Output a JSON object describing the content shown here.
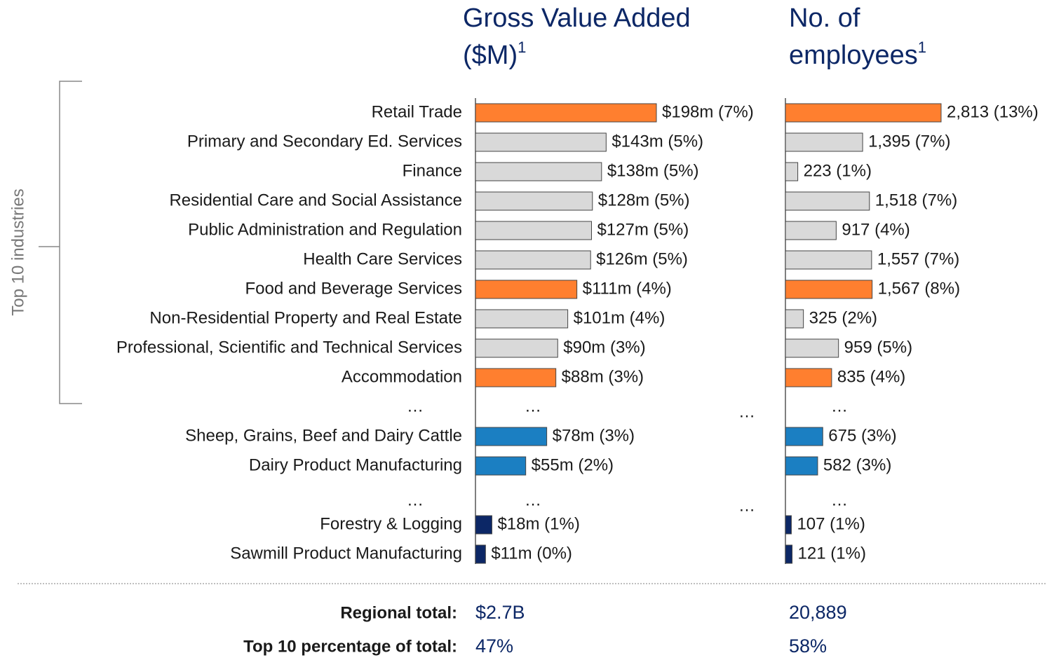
{
  "chart_data": {
    "type": "bar",
    "orientation": "horizontal",
    "bracket_label": "Top 10 industries",
    "categories": [
      "Retail Trade",
      "Primary and Secondary Ed. Services",
      "Finance",
      "Residential Care and Social Assistance",
      "Public Administration and Regulation",
      "Health Care Services",
      "Food and Beverage Services",
      "Non-Residential Property and Real Estate",
      "Professional, Scientific and Technical Services",
      "Accommodation",
      "…",
      "Sheep, Grains, Beef and Dairy Cattle",
      "Dairy Product Manufacturing",
      "…",
      "Forestry & Logging",
      "Sawmill Product Manufacturing"
    ],
    "colors": [
      "#ff7f2f",
      "#d9d9d9",
      "#d9d9d9",
      "#d9d9d9",
      "#d9d9d9",
      "#d9d9d9",
      "#ff7f2f",
      "#d9d9d9",
      "#d9d9d9",
      "#ff7f2f",
      null,
      "#1b7fc2",
      "#1b7fc2",
      null,
      "#0c2766",
      "#0c2766"
    ],
    "series": [
      {
        "name": "Gross Value Added ($M)",
        "footnote": "1",
        "values": [
          198,
          143,
          138,
          128,
          127,
          126,
          111,
          101,
          90,
          88,
          null,
          78,
          55,
          null,
          18,
          11
        ],
        "value_labels": [
          "$198m (7%)",
          "$143m (5%)",
          "$138m (5%)",
          "$128m (5%)",
          "$127m (5%)",
          "$126m (5%)",
          "$111m (4%)",
          "$101m (4%)",
          "$90m (3%)",
          "$88m (3%)",
          null,
          "$78m (3%)",
          "$55m (2%)",
          null,
          "$18m (1%)",
          "$11m (0%)"
        ]
      },
      {
        "name": "No. of employees",
        "footnote": "1",
        "values": [
          2813,
          1395,
          223,
          1518,
          917,
          1557,
          1567,
          325,
          959,
          835,
          null,
          675,
          582,
          null,
          107,
          121
        ],
        "value_labels": [
          "2,813 (13%)",
          "1,395 (7%)",
          "223 (1%)",
          "1,518 (7%)",
          "917 (4%)",
          "1,557 (7%)",
          "1,567 (8%)",
          "325 (2%)",
          "959 (5%)",
          "835 (4%)",
          null,
          "675 (3%)",
          "582 (3%)",
          null,
          "107 (1%)",
          "121 (1%)"
        ]
      }
    ],
    "summary": [
      {
        "label": "Regional total:",
        "values": [
          "$2.7B",
          "20,889"
        ]
      },
      {
        "label": "Top 10 percentage of total:",
        "values": [
          "47%",
          "58%"
        ]
      }
    ]
  }
}
